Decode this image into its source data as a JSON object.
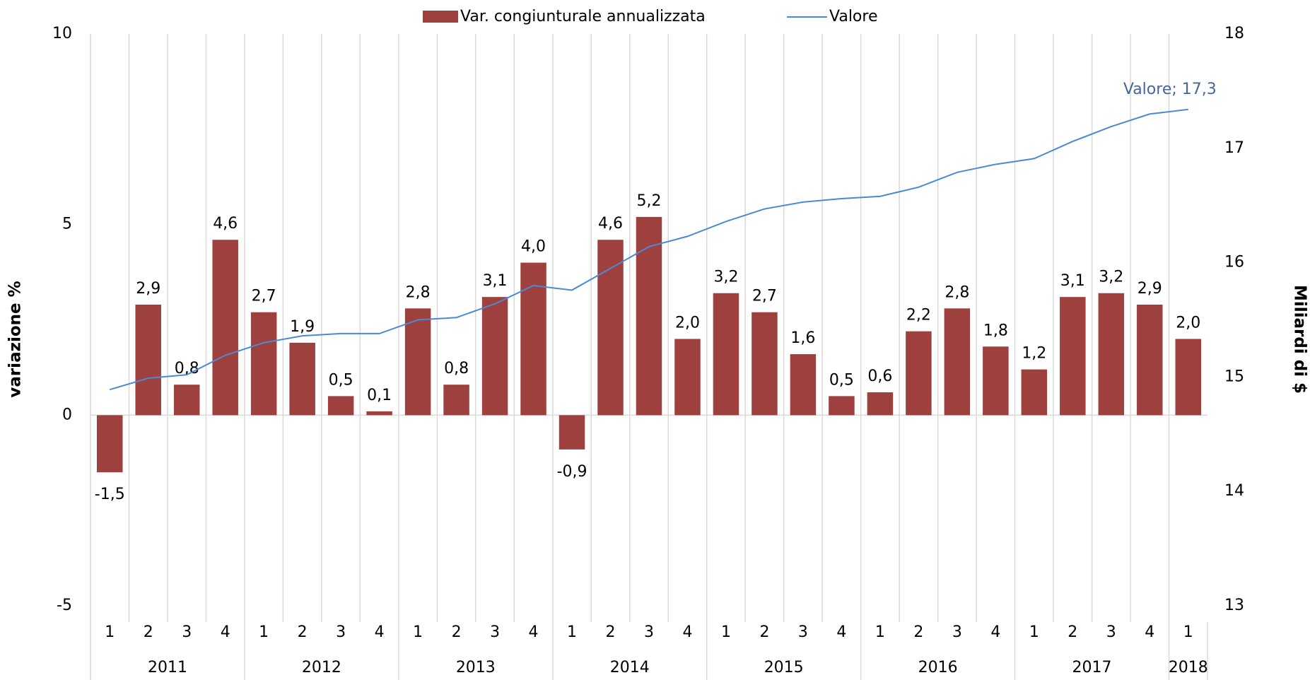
{
  "chart_data": {
    "type": "bar_line",
    "y_label": "variazione %",
    "y2_label": "Miliardi di $",
    "categories": [
      "1",
      "2",
      "3",
      "4",
      "1",
      "2",
      "3",
      "4",
      "1",
      "2",
      "3",
      "4",
      "1",
      "2",
      "3",
      "4",
      "1",
      "2",
      "3",
      "4",
      "1",
      "2",
      "3",
      "4",
      "1",
      "2",
      "3",
      "4",
      "1"
    ],
    "groups": [
      {
        "label": "2011",
        "size": 4
      },
      {
        "label": "2012",
        "size": 4
      },
      {
        "label": "2013",
        "size": 4
      },
      {
        "label": "2014",
        "size": 4
      },
      {
        "label": "2015",
        "size": 4
      },
      {
        "label": "2016",
        "size": 4
      },
      {
        "label": "2017",
        "size": 4
      },
      {
        "label": "2018",
        "size": 1
      }
    ],
    "series": [
      {
        "name": "Var. congiunturale annualizzata",
        "color": "#9e413e",
        "kind": "bar",
        "values": [
          -1.5,
          2.9,
          0.8,
          4.6,
          2.7,
          1.9,
          0.5,
          0.1,
          2.8,
          0.8,
          3.1,
          4.0,
          -0.9,
          4.6,
          5.2,
          2.0,
          3.2,
          2.7,
          1.6,
          0.5,
          0.6,
          2.2,
          2.8,
          1.8,
          1.2,
          3.1,
          3.2,
          2.9,
          2.0
        ],
        "value_labels": [
          "-1,5",
          "2,9",
          "0,8",
          "4,6",
          "2,7",
          "1,9",
          "0,5",
          "0,1",
          "2,8",
          "0,8",
          "3,1",
          "4,0",
          "-0,9",
          "4,6",
          "5,2",
          "2,0",
          "3,2",
          "2,7",
          "1,6",
          "0,5",
          "0,6",
          "2,2",
          "2,8",
          "1,8",
          "1,2",
          "3,1",
          "3,2",
          "2,9",
          "2,0"
        ]
      },
      {
        "name": "Valore",
        "color": "#4a8ad4",
        "kind": "line",
        "axis": "y2",
        "values": [
          14.89,
          14.99,
          15.02,
          15.19,
          15.3,
          15.36,
          15.38,
          15.38,
          15.5,
          15.52,
          15.64,
          15.8,
          15.76,
          15.95,
          16.14,
          16.23,
          16.36,
          16.47,
          16.53,
          16.56,
          16.58,
          16.66,
          16.79,
          16.86,
          16.91,
          17.06,
          17.19,
          17.3,
          17.34
        ]
      }
    ],
    "annotation": "Valore; 17,3",
    "annotation_color": "#44689a",
    "ylim": [
      -5,
      10
    ],
    "yticks": [
      -5,
      0,
      5,
      10
    ],
    "y2lim": [
      13,
      18
    ],
    "y2ticks": [
      13,
      14,
      15,
      16,
      17,
      18
    ]
  }
}
